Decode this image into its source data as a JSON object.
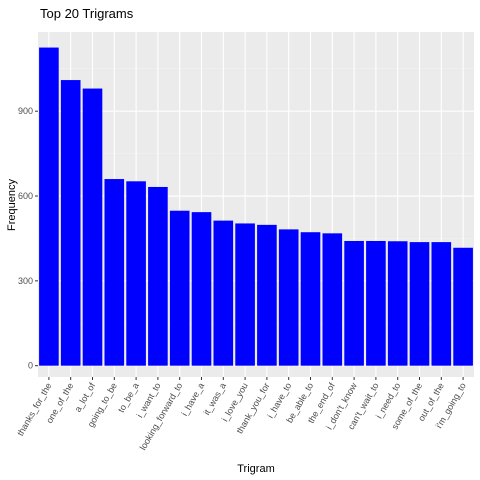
{
  "chart_data": {
    "type": "bar",
    "title": "Top 20 Trigrams",
    "xlabel": "Trigram",
    "ylabel": "Frequency",
    "categories": [
      "thanks_for_the",
      "one_of_the",
      "a_lot_of",
      "going_to_be",
      "to_be_a",
      "i_want_to",
      "looking_forward_to",
      "i_have_a",
      "it_was_a",
      "i_love_you",
      "thank_you_for",
      "i_have_to",
      "be_able_to",
      "the_end_of",
      "i_don't_know",
      "can't_wait_to",
      "i_need_to",
      "some_of_the",
      "out_of_the",
      "i'm_going_to"
    ],
    "values": [
      1125,
      1010,
      980,
      660,
      652,
      632,
      548,
      543,
      513,
      503,
      498,
      482,
      472,
      468,
      441,
      441,
      440,
      437,
      437,
      417
    ],
    "yticks": [
      0,
      300,
      600,
      900
    ],
    "ylim": [
      -40,
      1180
    ],
    "grid": true,
    "legend": "none",
    "colors": {
      "bar": "#0000ff",
      "panel": "#ebebeb",
      "grid_major": "#ffffff",
      "grid_minor": "#f4f4f4",
      "tick_text": "#4d4d4d",
      "tick_mark": "#333333",
      "text": "#000000"
    }
  }
}
